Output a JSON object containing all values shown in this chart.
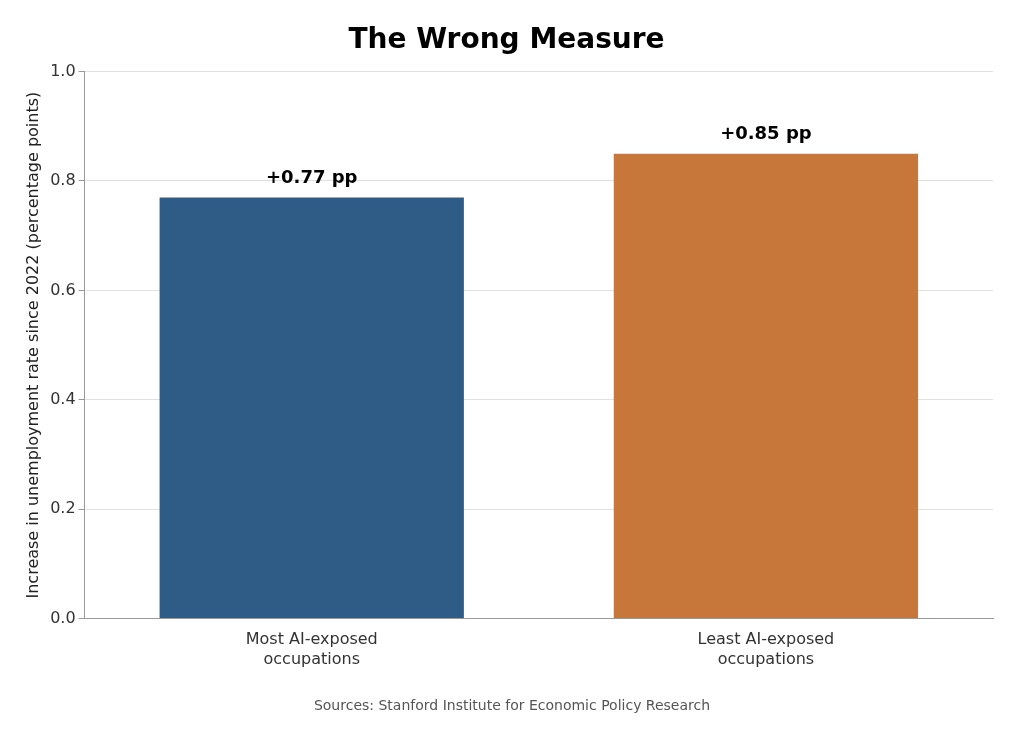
{
  "chart_data": {
    "type": "bar",
    "title": "The Wrong Measure",
    "ylabel": "Increase in unemployment rate since 2022 (percentage points)",
    "categories": [
      "Most AI-exposed\noccupations",
      "Least AI-exposed\noccupations"
    ],
    "values": [
      0.77,
      0.85
    ],
    "colors": [
      "#2e5c87",
      "#c8773a"
    ],
    "value_labels": [
      "+0.77 pp",
      "+0.85 pp"
    ],
    "ylim": [
      0,
      1
    ],
    "yticks": [
      {
        "value": 0,
        "label": "0.0"
      },
      0.2,
      0.4,
      0.6,
      0.8,
      {
        "value": 1,
        "label": "1.0"
      }
    ],
    "grid": "y",
    "legend": false,
    "annotations": [
      "Sources: Stanford Institute for Economic Policy Research"
    ]
  }
}
